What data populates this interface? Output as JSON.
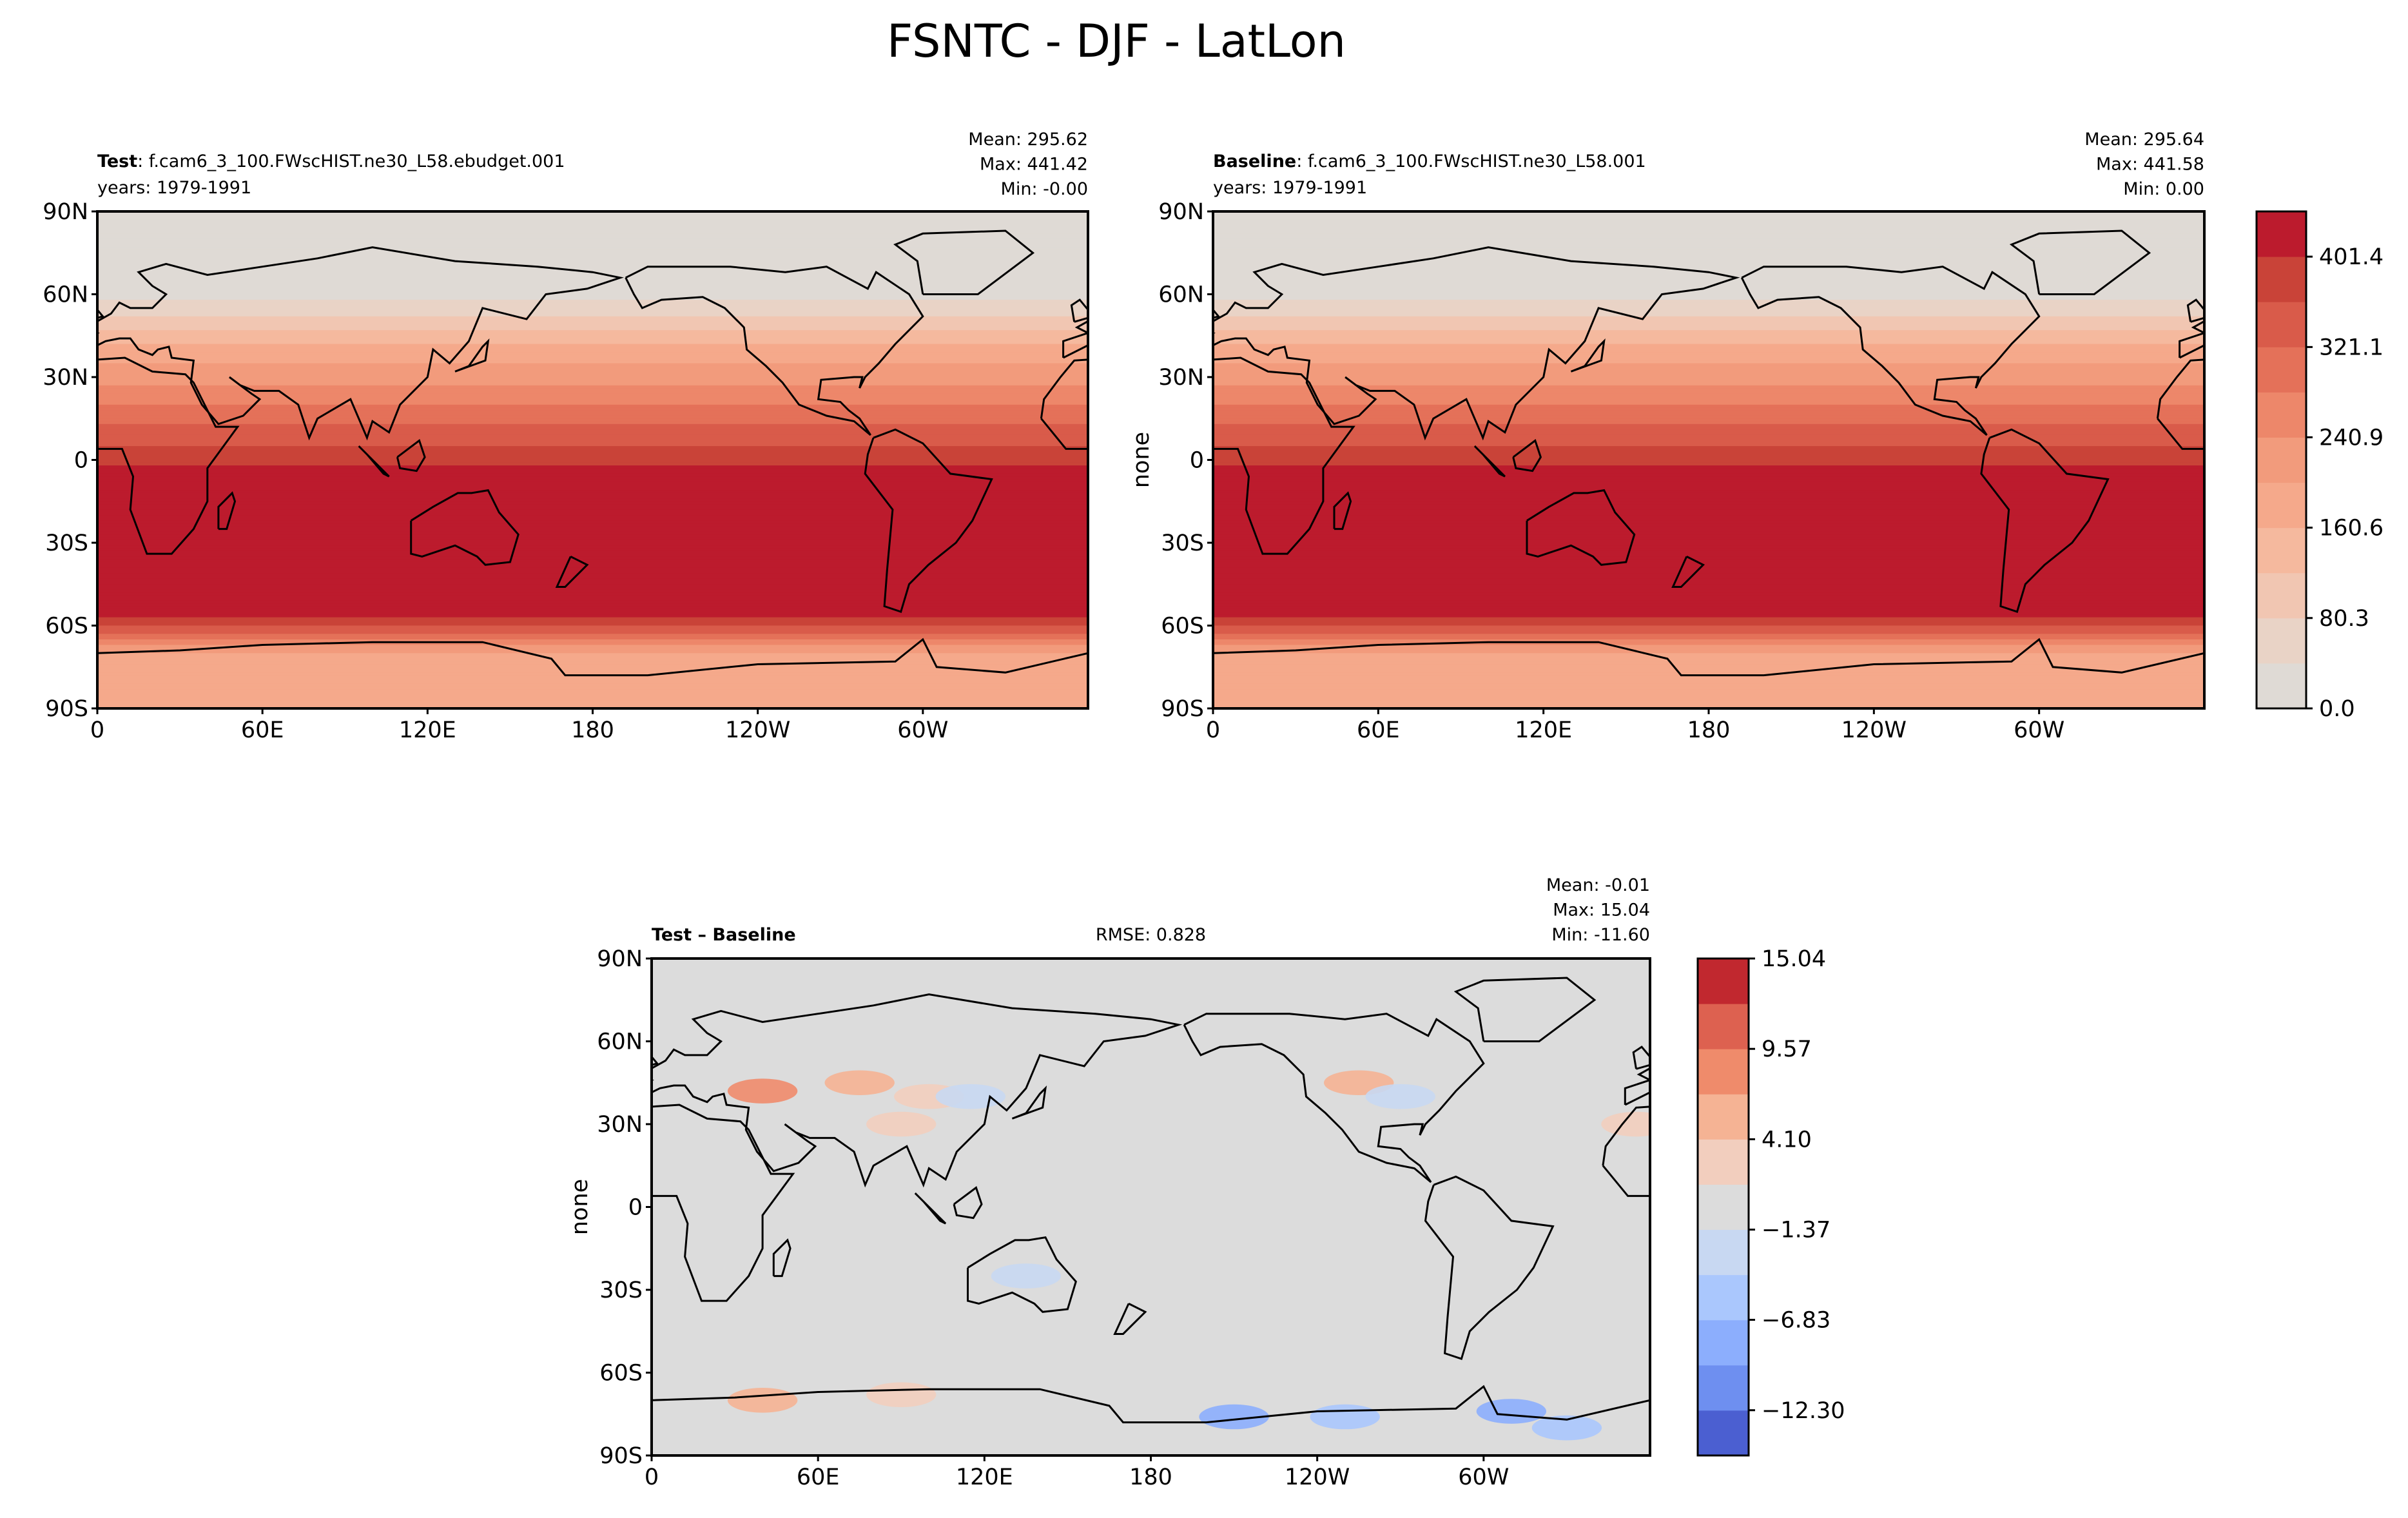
{
  "chart_data": {
    "type": "heatmap",
    "title": "FSNTC - DJF - LatLon",
    "lon_ticks": [
      {
        "v": 0,
        "label": "0"
      },
      {
        "v": 60,
        "label": "60E"
      },
      {
        "v": 120,
        "label": "120E"
      },
      {
        "v": 180,
        "label": "180"
      },
      {
        "v": 240,
        "label": "120W"
      },
      {
        "v": 300,
        "label": "60W"
      }
    ],
    "lat_ticks": [
      {
        "v": 90,
        "label": "90N"
      },
      {
        "v": 60,
        "label": "60N"
      },
      {
        "v": 30,
        "label": "30N"
      },
      {
        "v": 0,
        "label": "0"
      },
      {
        "v": -30,
        "label": "30S"
      },
      {
        "v": -60,
        "label": "60S"
      },
      {
        "v": -90,
        "label": "90S"
      }
    ],
    "panels": [
      {
        "name": "test",
        "label_bold": "Test",
        "label_rest": ": f.cam6_3_100.FWscHIST.ne30_L58.ebudget.001",
        "years": "years: 1979-1991",
        "stats": [
          "Mean: 295.62",
          "Max: 441.42",
          "Min: -0.00"
        ],
        "ylabel": ""
      },
      {
        "name": "baseline",
        "label_bold": "Baseline",
        "label_rest": ": f.cam6_3_100.FWscHIST.ne30_L58.001",
        "years": "years: 1979-1991",
        "stats": [
          "Mean: 295.64",
          "Max: 441.58",
          "Min:  0.00"
        ],
        "ylabel": "none"
      },
      {
        "name": "difference",
        "label_bold": "Test – Baseline",
        "rmse": "RMSE: 0.828",
        "stats": [
          "Mean: -0.01",
          "Max: 15.04",
          "Min: -11.60"
        ],
        "ylabel": "none"
      }
    ],
    "zonal_profile_approx": {
      "lat": [
        90,
        60,
        55,
        50,
        45,
        40,
        35,
        30,
        25,
        20,
        15,
        10,
        5,
        0,
        -5,
        -55,
        -58,
        -62,
        -66,
        -70,
        -74,
        -90
      ],
      "value": [
        0,
        30,
        60,
        100,
        140,
        170,
        200,
        225,
        250,
        280,
        310,
        335,
        360,
        385,
        420,
        420,
        390,
        330,
        260,
        200,
        180,
        170
      ]
    },
    "diff_anomalies_approx": [
      {
        "lon": 40,
        "lat": 42,
        "value": 7
      },
      {
        "lon": 75,
        "lat": 45,
        "value": 6
      },
      {
        "lon": 100,
        "lat": 40,
        "value": 4
      },
      {
        "lon": 90,
        "lat": 30,
        "value": 3
      },
      {
        "lon": 115,
        "lat": 40,
        "value": -4
      },
      {
        "lon": 255,
        "lat": 45,
        "value": 6
      },
      {
        "lon": 270,
        "lat": 40,
        "value": -4
      },
      {
        "lon": 135,
        "lat": -25,
        "value": -3
      },
      {
        "lon": 40,
        "lat": -70,
        "value": 6
      },
      {
        "lon": 90,
        "lat": -68,
        "value": 4
      },
      {
        "lon": 210,
        "lat": -76,
        "value": -8
      },
      {
        "lon": 250,
        "lat": -76,
        "value": -6
      },
      {
        "lon": 310,
        "lat": -74,
        "value": -9
      },
      {
        "lon": 330,
        "lat": -80,
        "value": -5
      },
      {
        "lon": 355,
        "lat": 30,
        "value": 3
      }
    ],
    "colorbars": [
      {
        "levels_min": 0.0,
        "levels_max": 441.58,
        "n_bands": 11,
        "ticks": [
          "0.0",
          "80.3",
          "160.6",
          "240.9",
          "321.1",
          "401.4"
        ],
        "tick_values": [
          0.0,
          80.3,
          160.6,
          240.9,
          321.1,
          401.4
        ],
        "colors": [
          "#dfdad5",
          "#e9d3c6",
          "#f1c6b2",
          "#f5b99e",
          "#f5a98b",
          "#f29b7c",
          "#ed876a",
          "#e47159",
          "#d95b4a",
          "#c94338",
          "#bc1b2d"
        ]
      },
      {
        "levels_min": -15.04,
        "levels_max": 15.04,
        "n_bands": 11,
        "ticks": [
          "15.04",
          "9.57",
          "4.10",
          "−1.37",
          "−6.83",
          "−12.30"
        ],
        "tick_values": [
          15.04,
          9.57,
          4.1,
          -1.37,
          -6.83,
          -12.3
        ],
        "colors": [
          "#4b5fd1",
          "#6e8ff0",
          "#8caefd",
          "#aac7fd",
          "#c8d8f2",
          "#dcdcdc",
          "#f2cebe",
          "#f5b394",
          "#ef8b6b",
          "#dd6150",
          "#c1282f"
        ]
      }
    ]
  }
}
